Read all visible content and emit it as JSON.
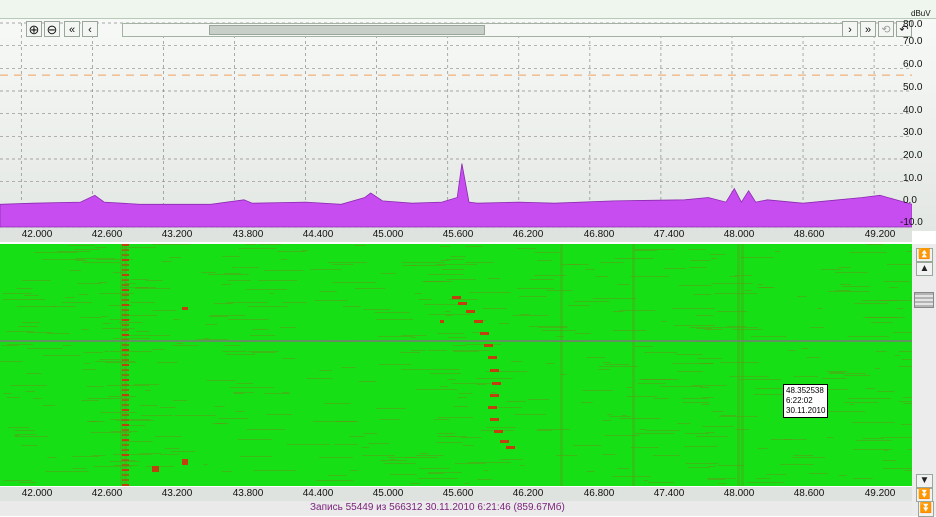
{
  "toolbar": {
    "zoom_in": "⊕",
    "zoom_out": "⊖",
    "scroll_first": "«",
    "scroll_prev": "‹",
    "scroll_next": "›",
    "scroll_last": "»",
    "reset_zoom": "⟲",
    "undo": "↶"
  },
  "spectrum": {
    "unit": "dBuV",
    "levels": [
      "80.0",
      "70.0",
      "60.0",
      "50.0",
      "40.0",
      "30.0",
      "20.0",
      "10.0",
      "0.0",
      "-10.0"
    ]
  },
  "freq_axis_top": [
    "42.000",
    "42.600",
    "43.200",
    "43.800",
    "44.400",
    "45.000",
    "45.600",
    "46.200",
    "46.800",
    "47.400",
    "48.000",
    "48.600",
    "49.200"
  ],
  "freq_axis_bottom": [
    "42.000",
    "42.600",
    "43.200",
    "43.800",
    "44.400",
    "45.000",
    "45.600",
    "46.200",
    "46.800",
    "47.400",
    "48.000",
    "48.600",
    "49.200"
  ],
  "tooltip": {
    "freq": "48.352538",
    "time": "6:22:02",
    "date": "30.11.2010"
  },
  "status": {
    "text": "Запись 55449  из 566312   30.11.2010 6:21:46 (859.67Мб)"
  },
  "colors": {
    "spectrum_fill": "#c84df0",
    "waterfall_bg": "#16df16",
    "signal_trace": "#c04010",
    "threshold_line": "#f0a060"
  },
  "chart_data": {
    "type": "area",
    "xlabel": "",
    "ylabel": "dBuV",
    "xlim": [
      41.82,
      49.52
    ],
    "ylim": [
      -10,
      80
    ],
    "threshold": 57,
    "x": [
      41.82,
      42.1,
      42.5,
      42.62,
      42.7,
      43.0,
      43.6,
      43.88,
      43.95,
      44.4,
      44.7,
      44.9,
      44.95,
      45.05,
      45.3,
      45.55,
      45.68,
      45.72,
      45.78,
      45.85,
      46.2,
      46.5,
      47.0,
      47.6,
      47.8,
      47.95,
      48.02,
      48.08,
      48.14,
      48.2,
      48.3,
      48.6,
      48.9,
      49.1,
      49.25,
      49.52
    ],
    "y": [
      0,
      0.5,
      1,
      4,
      1,
      0,
      0,
      2,
      0.5,
      1,
      0,
      3,
      5,
      1.5,
      0.5,
      1,
      3,
      18,
      1,
      0.5,
      1,
      0.5,
      1.5,
      2,
      3,
      1,
      7,
      1,
      6,
      1,
      2,
      0.5,
      2,
      3,
      4,
      0
    ]
  }
}
